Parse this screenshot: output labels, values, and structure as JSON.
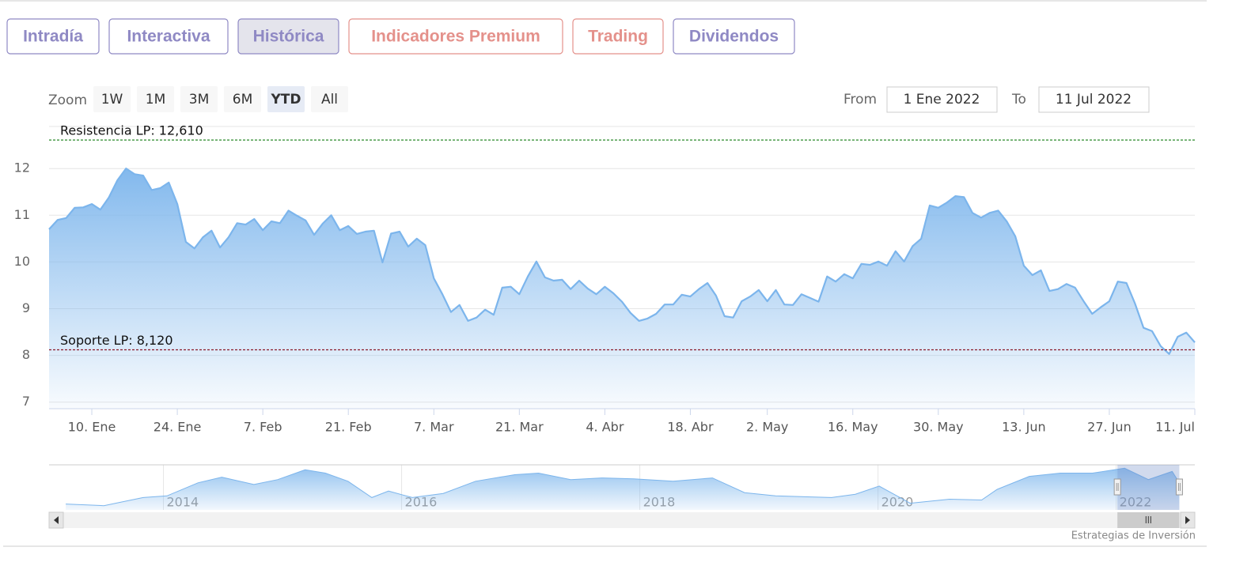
{
  "tabs": [
    {
      "label": "Intradía",
      "color": "#8f89c4"
    },
    {
      "label": "Interactiva",
      "color": "#8f89c4"
    },
    {
      "label": "Histórica",
      "color": "#8f89c4"
    },
    {
      "label": "Indicadores Premium",
      "color": "#e4918b"
    },
    {
      "label": "Trading",
      "color": "#e4918b"
    },
    {
      "label": "Dividendos",
      "color": "#8f89c4"
    }
  ],
  "active_tab": 2,
  "zoom": {
    "label": "Zoom",
    "buttons": [
      "1W",
      "1M",
      "3M",
      "6M",
      "YTD",
      "All"
    ],
    "active": 4
  },
  "range": {
    "from_label": "From",
    "from": "1 Ene 2022",
    "to_label": "To",
    "to": "11 Jul 2022"
  },
  "chart_data": {
    "type": "area",
    "color": "#7cb5ec",
    "categories": [
      null,
      null,
      null,
      null,
      null,
      "10. Ene",
      null,
      null,
      null,
      null,
      null,
      null,
      null,
      null,
      null,
      "24. Ene",
      null,
      null,
      null,
      null,
      null,
      null,
      null,
      null,
      null,
      "7. Feb",
      null,
      null,
      null,
      null,
      null,
      null,
      null,
      null,
      null,
      "21. Feb",
      null,
      null,
      null,
      null,
      null,
      null,
      null,
      null,
      null,
      "7. Mar",
      null,
      null,
      null,
      null,
      null,
      null,
      null,
      null,
      null,
      "21. Mar",
      null,
      null,
      null,
      null,
      null,
      null,
      null,
      null,
      null,
      "4. Abr",
      null,
      null,
      null,
      null,
      null,
      null,
      null,
      null,
      null,
      "18. Abr",
      null,
      null,
      null,
      null,
      null,
      null,
      null,
      null,
      "2. May",
      null,
      null,
      null,
      null,
      null,
      null,
      null,
      null,
      null,
      "16. May",
      null,
      null,
      null,
      null,
      null,
      null,
      null,
      null,
      null,
      "30. May",
      null,
      null,
      null,
      null,
      null,
      null,
      null,
      null,
      null,
      "13. Jun",
      null,
      null,
      null,
      null,
      null,
      null,
      null,
      null,
      null,
      "27. Jun",
      null,
      null,
      null,
      null,
      null,
      null,
      null,
      null,
      null,
      "11. Jul"
    ],
    "values": [
      10.7,
      10.9,
      10.94,
      11.16,
      11.17,
      11.24,
      11.12,
      11.38,
      11.75,
      12.0,
      11.88,
      11.85,
      11.54,
      11.58,
      11.7,
      11.24,
      10.43,
      10.29,
      10.53,
      10.67,
      10.31,
      10.53,
      10.83,
      10.8,
      10.92,
      10.68,
      10.87,
      10.83,
      11.1,
      10.99,
      10.89,
      10.58,
      10.82,
      11.0,
      10.68,
      10.77,
      10.6,
      10.65,
      10.67,
      9.99,
      10.61,
      10.65,
      10.33,
      10.5,
      10.36,
      9.65,
      9.31,
      8.93,
      9.08,
      8.74,
      8.81,
      8.98,
      8.87,
      9.45,
      9.47,
      9.31,
      9.69,
      10.01,
      9.67,
      9.6,
      9.62,
      9.42,
      9.6,
      9.43,
      9.31,
      9.47,
      9.33,
      9.15,
      8.91,
      8.74,
      8.79,
      8.89,
      9.09,
      9.09,
      9.3,
      9.26,
      9.42,
      9.55,
      9.28,
      8.84,
      8.81,
      9.16,
      9.26,
      9.4,
      9.16,
      9.4,
      9.09,
      9.08,
      9.31,
      9.23,
      9.15,
      9.69,
      9.58,
      9.74,
      9.65,
      9.96,
      9.94,
      10.01,
      9.92,
      10.23,
      10.01,
      10.34,
      10.5,
      11.21,
      11.16,
      11.27,
      11.41,
      11.39,
      11.05,
      10.95,
      11.05,
      11.1,
      10.87,
      10.55,
      9.92,
      9.72,
      9.82,
      9.38,
      9.42,
      9.53,
      9.45,
      9.16,
      8.89,
      9.03,
      9.16,
      9.58,
      9.55,
      9.11,
      8.59,
      8.52,
      8.2,
      8.03,
      8.4,
      8.49,
      8.28
    ],
    "ylim": [
      6.86,
      12.9
    ],
    "yticks": [
      7,
      8,
      9,
      10,
      11,
      12
    ],
    "grid": true,
    "plot_lines": [
      {
        "value": 12.61,
        "label": "Resistencia LP: 12,610",
        "color": "#2a8a2a"
      },
      {
        "value": 8.12,
        "label": "Soporte LP: 8,120",
        "color": "#8b1a2a"
      }
    ],
    "navigator": {
      "type": "area",
      "x": [
        2013.18,
        2013.5,
        2013.83,
        2014.03,
        2014.29,
        2014.49,
        2014.76,
        2014.96,
        2015.19,
        2015.36,
        2015.55,
        2015.75,
        2015.89,
        2016.09,
        2016.35,
        2016.62,
        2016.95,
        2017.15,
        2017.42,
        2017.68,
        2017.95,
        2018.28,
        2018.61,
        2018.88,
        2019.14,
        2019.61,
        2019.81,
        2020.01,
        2020.27,
        2020.6,
        2020.87,
        2021.0,
        2021.27,
        2021.53,
        2021.8,
        2022.07,
        2022.27,
        2022.47,
        2022.53
      ],
      "values": [
        2.45,
        2.02,
        4.19,
        4.62,
        8.09,
        9.61,
        7.66,
        8.96,
        11.57,
        10.7,
        8.53,
        4.19,
        5.92,
        4.19,
        5.27,
        8.53,
        10.26,
        10.7,
        8.96,
        9.4,
        9.18,
        8.53,
        9.4,
        5.49,
        4.62,
        4.19,
        5.06,
        7.23,
        2.67,
        3.75,
        3.54,
        6.36,
        9.83,
        10.7,
        10.7,
        12.0,
        8.96,
        11.13,
        8.09
      ],
      "xlim": [
        2013.04,
        2022.66
      ],
      "ylim": [
        0.9,
        12.9
      ],
      "xticks": [
        2014,
        2016,
        2018,
        2020,
        2022
      ],
      "selection": [
        2022.01,
        2022.53
      ]
    }
  },
  "credits": "Estrategias de Inversión"
}
